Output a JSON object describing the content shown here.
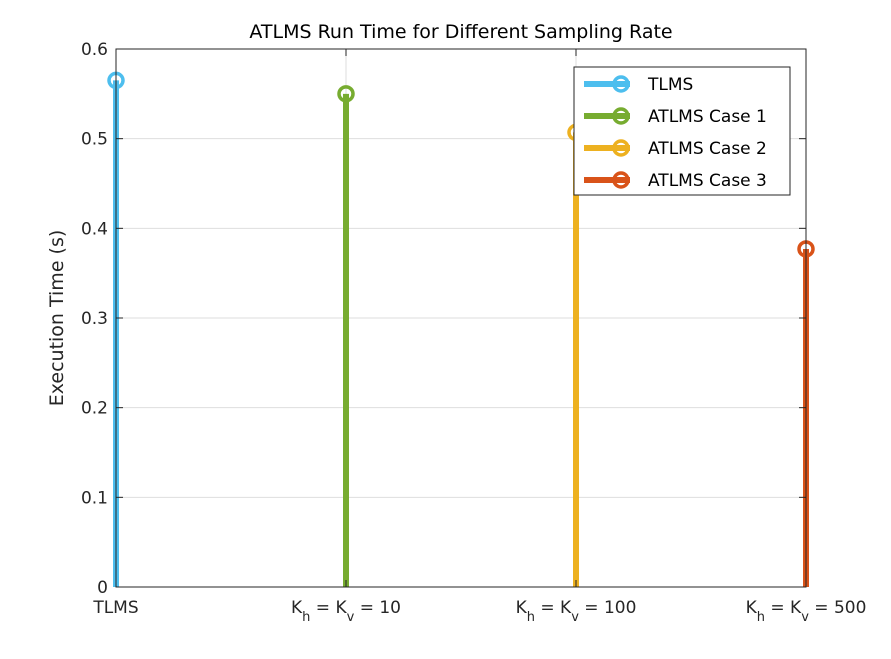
{
  "chart_data": {
    "type": "stem",
    "title": "ATLMS Run Time for Different Sampling Rate",
    "xlabel": "",
    "ylabel": "Execution Time (s)",
    "ylim": [
      0,
      0.6
    ],
    "yticks": [
      "0",
      "0.1",
      "0.2",
      "0.3",
      "0.4",
      "0.5",
      "0.6"
    ],
    "grid": true,
    "legend_position": "top-right",
    "categories": [
      {
        "main": "TLMS",
        "sub_a": "",
        "mid": "",
        "sub_b": "",
        "tail": ""
      },
      {
        "main": "K",
        "sub_a": "h",
        "mid": " = K",
        "sub_b": "v",
        "tail": " = 10"
      },
      {
        "main": "K",
        "sub_a": "h",
        "mid": " = K",
        "sub_b": "v",
        "tail": " = 100"
      },
      {
        "main": "K",
        "sub_a": "h",
        "mid": " = K",
        "sub_b": "v",
        "tail": " = 500"
      }
    ],
    "series": [
      {
        "name": "TLMS",
        "color": "#4DBEEE",
        "category_index": 0,
        "value": 0.565
      },
      {
        "name": "ATLMS Case 1",
        "color": "#77AC30",
        "category_index": 1,
        "value": 0.55
      },
      {
        "name": "ATLMS Case 2",
        "color": "#EDB120",
        "category_index": 2,
        "value": 0.507
      },
      {
        "name": "ATLMS Case 3",
        "color": "#D95319",
        "category_index": 3,
        "value": 0.377
      }
    ]
  }
}
